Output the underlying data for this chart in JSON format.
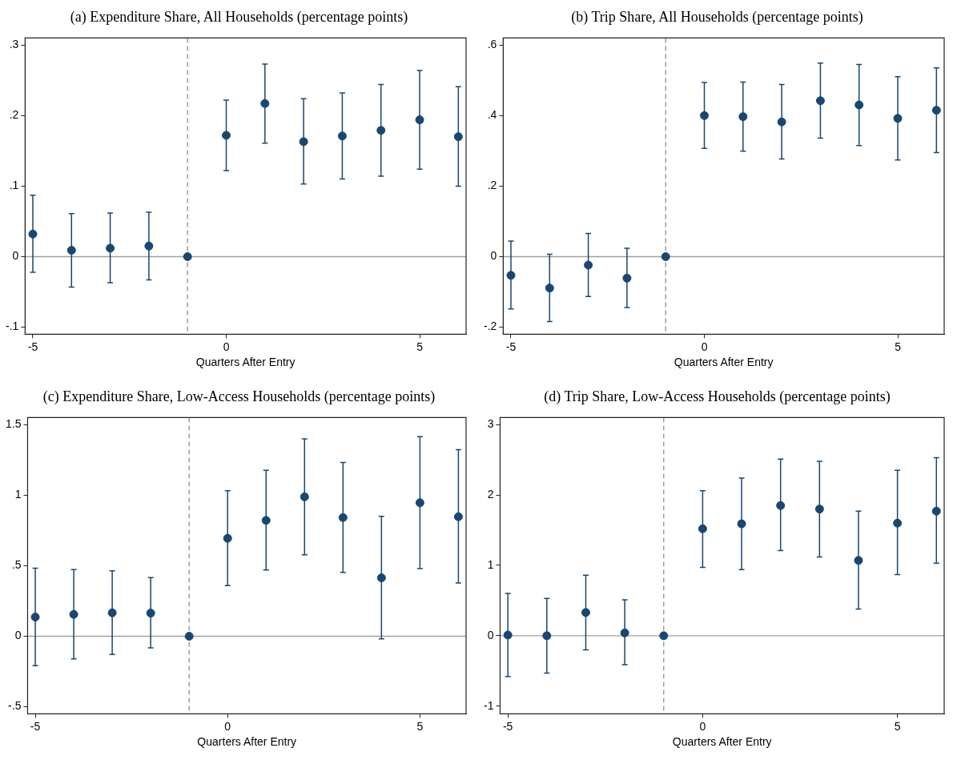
{
  "chart_data": [
    {
      "type": "scatter",
      "title": "(a) Expenditure Share, All Households (percentage points)",
      "xlabel": "Quarters After Entry",
      "x": [
        -5,
        -4,
        -3,
        -2,
        -1,
        0,
        1,
        2,
        3,
        4,
        5,
        6
      ],
      "color": "#1a476f",
      "marker": "circle",
      "values": [
        0.032,
        0.009,
        0.012,
        0.015,
        0,
        0.172,
        0.217,
        0.163,
        0.171,
        0.179,
        0.194,
        0.17
      ],
      "errors": [
        [
          -0.022,
          0.087
        ],
        [
          -0.043,
          0.061
        ],
        [
          -0.037,
          0.062
        ],
        [
          -0.033,
          0.063
        ],
        null,
        [
          0.122,
          0.222
        ],
        [
          0.161,
          0.273
        ],
        [
          0.103,
          0.224
        ],
        [
          0.11,
          0.232
        ],
        [
          0.114,
          0.244
        ],
        [
          0.124,
          0.264
        ],
        [
          0.1,
          0.241
        ]
      ],
      "xlim": [
        -5.2,
        6.2
      ],
      "xticks": [
        -5,
        0,
        5
      ],
      "ylim": [
        -0.11,
        0.31
      ],
      "yticks": [
        {
          "value": -0.1,
          "label": "-.1"
        },
        0,
        {
          "value": 0.1,
          "label": ".1"
        },
        {
          "value": 0.2,
          "label": ".2"
        },
        {
          "value": 0.3,
          "label": ".3"
        }
      ],
      "ref_lines": [
        {
          "axis": "y",
          "value": 0,
          "color": "#a0a0a0",
          "line_style": "solid"
        },
        {
          "axis": "x",
          "value": -1,
          "color": "#909090",
          "line_style": "dashed"
        }
      ]
    },
    {
      "type": "scatter",
      "title": "(b) Trip Share, All Households (percentage points)",
      "xlabel": "Quarters After Entry",
      "x": [
        -5,
        -4,
        -3,
        -2,
        -1,
        0,
        1,
        2,
        3,
        4,
        5,
        6
      ],
      "color": "#1a476f",
      "marker": "circle",
      "values": [
        -0.053,
        -0.089,
        -0.024,
        -0.061,
        0,
        0.4,
        0.397,
        0.382,
        0.442,
        0.43,
        0.392,
        0.415
      ],
      "errors": [
        [
          -0.148,
          0.044
        ],
        [
          -0.184,
          0.007
        ],
        [
          -0.113,
          0.066
        ],
        [
          -0.144,
          0.024
        ],
        null,
        [
          0.307,
          0.494
        ],
        [
          0.299,
          0.495
        ],
        [
          0.277,
          0.488
        ],
        [
          0.336,
          0.549
        ],
        [
          0.315,
          0.545
        ],
        [
          0.274,
          0.51
        ],
        [
          0.295,
          0.535
        ]
      ],
      "xlim": [
        -5.2,
        6.2
      ],
      "xticks": [
        -5,
        0,
        5
      ],
      "ylim": [
        -0.22,
        0.62
      ],
      "yticks": [
        {
          "value": -0.2,
          "label": "-.2"
        },
        0,
        {
          "value": 0.2,
          "label": ".2"
        },
        {
          "value": 0.4,
          "label": ".4"
        },
        {
          "value": 0.6,
          "label": ".6"
        }
      ],
      "ref_lines": [
        {
          "axis": "y",
          "value": 0,
          "color": "#a0a0a0",
          "line_style": "solid"
        },
        {
          "axis": "x",
          "value": -1,
          "color": "#909090",
          "line_style": "dashed"
        }
      ]
    },
    {
      "type": "scatter",
      "title": "(c) Expenditure Share, Low-Access Households (percentage points)",
      "xlabel": "Quarters After Entry",
      "x": [
        -5,
        -4,
        -3,
        -2,
        -1,
        0,
        1,
        2,
        3,
        4,
        5,
        6
      ],
      "color": "#1a476f",
      "marker": "circle",
      "values": [
        0.136,
        0.155,
        0.166,
        0.164,
        0,
        0.694,
        0.821,
        0.988,
        0.841,
        0.414,
        0.946,
        0.847
      ],
      "errors": [
        [
          -0.208,
          0.482
        ],
        [
          -0.16,
          0.473
        ],
        [
          -0.129,
          0.464
        ],
        [
          -0.083,
          0.416
        ],
        null,
        [
          0.359,
          1.031
        ],
        [
          0.469,
          1.176
        ],
        [
          0.578,
          1.399
        ],
        [
          0.453,
          1.231
        ],
        [
          -0.018,
          0.85
        ],
        [
          0.48,
          1.414
        ],
        [
          0.377,
          1.323
        ]
      ],
      "xlim": [
        -5.2,
        6.2
      ],
      "xticks": [
        -5,
        0,
        5
      ],
      "ylim": [
        -0.55,
        1.55
      ],
      "yticks": [
        {
          "value": -0.5,
          "label": "-.5"
        },
        0,
        {
          "value": 0.5,
          "label": ".5"
        },
        1,
        1.5
      ],
      "ref_lines": [
        {
          "axis": "y",
          "value": 0,
          "color": "#a0a0a0",
          "line_style": "solid"
        },
        {
          "axis": "x",
          "value": -1,
          "color": "#909090",
          "line_style": "dashed"
        }
      ]
    },
    {
      "type": "scatter",
      "title": "(d) Trip Share, Low-Access Households (percentage points)",
      "xlabel": "Quarters After Entry",
      "x": [
        -5,
        -4,
        -3,
        -2,
        -1,
        0,
        1,
        2,
        3,
        4,
        5,
        6
      ],
      "color": "#1a476f",
      "marker": "circle",
      "values": [
        0.01,
        0,
        0.33,
        0.04,
        0,
        1.52,
        1.59,
        1.85,
        1.8,
        1.07,
        1.6,
        1.77
      ],
      "errors": [
        [
          -0.58,
          0.6
        ],
        [
          -0.53,
          0.53
        ],
        [
          -0.2,
          0.86
        ],
        [
          -0.41,
          0.51
        ],
        null,
        [
          0.97,
          2.06
        ],
        [
          0.94,
          2.24
        ],
        [
          1.21,
          2.51
        ],
        [
          1.12,
          2.48
        ],
        [
          0.38,
          1.77
        ],
        [
          0.87,
          2.35
        ],
        [
          1.03,
          2.53
        ]
      ],
      "xlim": [
        -5.2,
        6.2
      ],
      "xticks": [
        -5,
        0,
        5
      ],
      "ylim": [
        -1.11,
        3.1
      ],
      "yticks": [
        -1,
        0,
        1,
        2,
        3
      ],
      "ref_lines": [
        {
          "axis": "y",
          "value": 0,
          "color": "#a0a0a0",
          "line_style": "solid"
        },
        {
          "axis": "x",
          "value": -1,
          "color": "#909090",
          "line_style": "dashed"
        }
      ]
    }
  ]
}
